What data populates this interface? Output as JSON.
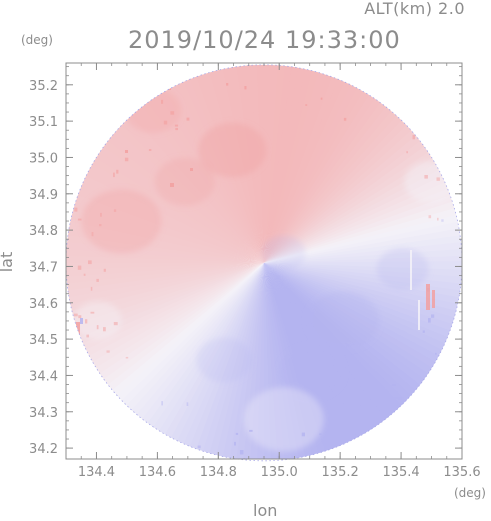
{
  "header": {
    "altitude_label": "ALT(km) 2.0",
    "datetime": "2019/10/24 19:33:00"
  },
  "axes": {
    "x_title": "lon",
    "y_title": "lat",
    "x_unit": "(deg)",
    "y_unit": "(deg)"
  },
  "chart_data": {
    "type": "heatmap",
    "xlim": [
      134.3,
      135.6
    ],
    "ylim": [
      34.17,
      35.26
    ],
    "x_ticks": [
      "134.4",
      "134.6",
      "134.8",
      "135.0",
      "135.2",
      "135.4",
      "135.6"
    ],
    "y_ticks": [
      "35.2",
      "35.1",
      "35.0",
      "34.9",
      "34.8",
      "34.7",
      "34.6",
      "34.5",
      "34.4",
      "34.3",
      "34.2"
    ],
    "radar_center": {
      "lon": 134.95,
      "lat": 34.71
    },
    "grid": false,
    "colors": {
      "positive": "#f2a0a0",
      "negative": "#b4b4f0",
      "neutral": "#f4f2f8",
      "axis": "#8c8c8c"
    }
  }
}
